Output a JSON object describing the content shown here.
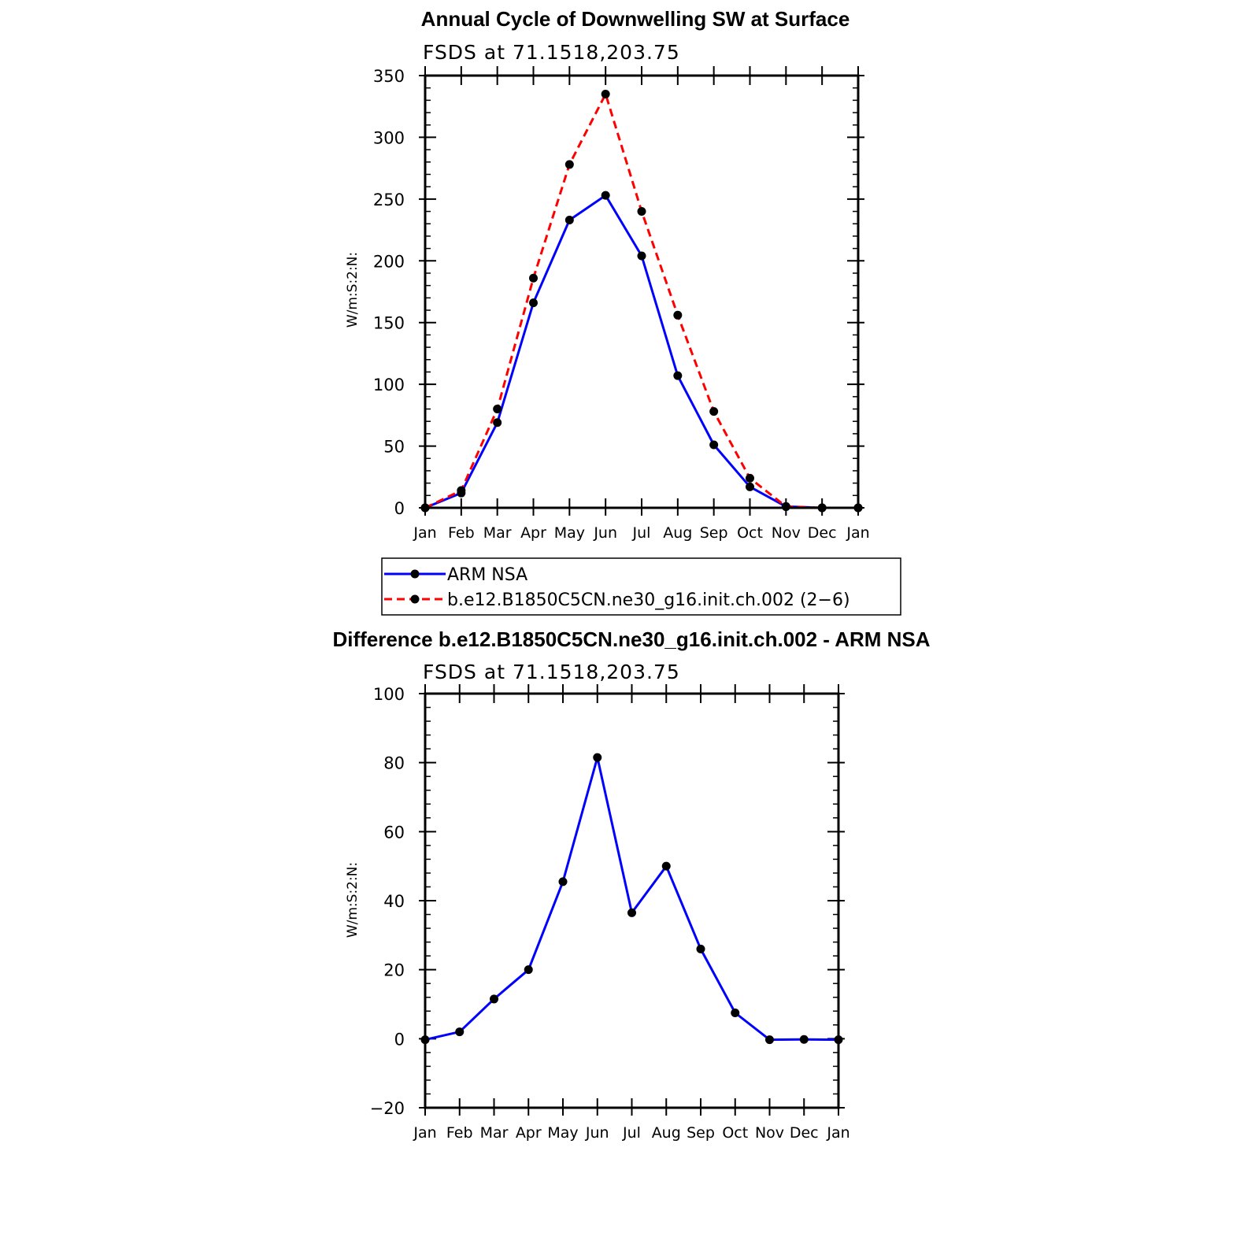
{
  "chart_data": [
    {
      "type": "line",
      "title": "Annual Cycle of Downwelling SW at Surface",
      "subtitle": "FSDS at 71.1518,203.75",
      "ylabel": "W/m:S:2:N:",
      "xlabel": "",
      "categories": [
        "Jan",
        "Feb",
        "Mar",
        "Apr",
        "May",
        "Jun",
        "Jul",
        "Aug",
        "Sep",
        "Oct",
        "Nov",
        "Dec",
        "Jan"
      ],
      "ylim": [
        0,
        350
      ],
      "yticks": [
        0,
        50,
        100,
        150,
        200,
        250,
        300,
        350
      ],
      "grid": false,
      "legend_position": "bottom",
      "series": [
        {
          "name": "ARM NSA",
          "color": "#0000ff",
          "dash": "solid",
          "values": [
            0,
            12,
            69,
            166,
            233,
            253,
            204,
            107,
            51,
            17,
            1,
            0,
            0
          ]
        },
        {
          "name": "b.e12.B1850C5CN.ne30_g16.init.ch.002 (2−6)",
          "color": "#ff0000",
          "dash": "dashed",
          "values": [
            0,
            14,
            80,
            186,
            278,
            335,
            240,
            156,
            78,
            24,
            1,
            0,
            0
          ]
        }
      ]
    },
    {
      "type": "line",
      "title": "Difference b.e12.B1850C5CN.ne30_g16.init.ch.002 - ARM NSA",
      "subtitle": "FSDS at 71.1518,203.75",
      "ylabel": "W/m:S:2:N:",
      "xlabel": "",
      "categories": [
        "Jan",
        "Feb",
        "Mar",
        "Apr",
        "May",
        "Jun",
        "Jul",
        "Aug",
        "Sep",
        "Oct",
        "Nov",
        "Dec",
        "Jan"
      ],
      "ylim": [
        -20,
        100
      ],
      "yticks": [
        -20,
        0,
        20,
        40,
        60,
        80,
        100
      ],
      "ytick_labels": [
        "−20",
        "0",
        "20",
        "40",
        "60",
        "80",
        "100"
      ],
      "grid": false,
      "series": [
        {
          "color": "#0000ff",
          "dash": "solid",
          "values": [
            -0.3,
            2,
            11.5,
            20,
            45.5,
            81.5,
            36.5,
            50,
            26,
            7.5,
            -0.3,
            -0.2,
            -0.3
          ]
        }
      ]
    }
  ]
}
